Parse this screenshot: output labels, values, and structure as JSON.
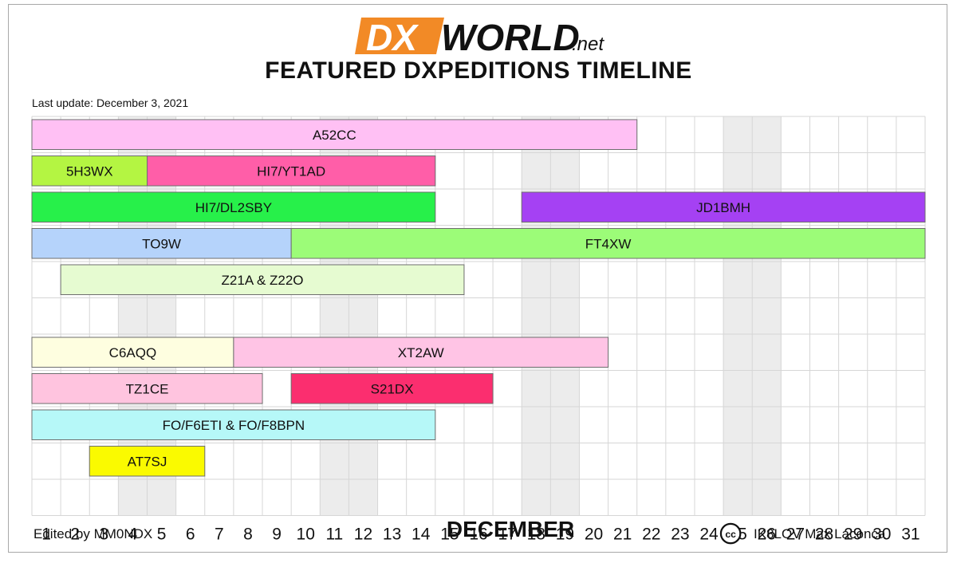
{
  "header": {
    "logo_dx": "DX",
    "logo_world": "WORLD",
    "logo_net": ".net",
    "title": "FEATURED DXPEDITIONS TIMELINE",
    "last_update": "Last update: December 3, 2021"
  },
  "footer": {
    "edited_by": "Edited by MM0NDX",
    "cc_symbol": "cc",
    "credit": "IK8LOV Max Laconca"
  },
  "chart_data": {
    "type": "gantt",
    "title": "FEATURED DXPEDITIONS TIMELINE",
    "xlabel": "DECEMBER",
    "days": [
      1,
      2,
      3,
      4,
      5,
      6,
      7,
      8,
      9,
      10,
      11,
      12,
      13,
      14,
      15,
      16,
      17,
      18,
      19,
      20,
      21,
      22,
      23,
      24,
      25,
      26,
      27,
      28,
      29,
      30,
      31
    ],
    "weekend_days": [
      4,
      5,
      11,
      12,
      18,
      19,
      25,
      26
    ],
    "rows": 11,
    "bars": [
      {
        "label": "A52CC",
        "row": 0,
        "start_day": 1,
        "end_day": 21,
        "color": "#ffc0f4"
      },
      {
        "label": "5H3WX",
        "row": 1,
        "start_day": 1,
        "end_day": 4,
        "color": "#b4f542"
      },
      {
        "label": "HI7/YT1AD",
        "row": 1,
        "start_day": 5,
        "end_day": 14,
        "color": "#ff5ea8"
      },
      {
        "label": "HI7/DL2SBY",
        "row": 2,
        "start_day": 1,
        "end_day": 14,
        "color": "#27f04a"
      },
      {
        "label": "JD1BMH",
        "row": 2,
        "start_day": 18,
        "end_day": 31,
        "color": "#a541f3"
      },
      {
        "label": "TO9W",
        "row": 3,
        "start_day": 1,
        "end_day": 9,
        "color": "#b5d3fb"
      },
      {
        "label": "FT4XW",
        "row": 3,
        "start_day": 10,
        "end_day": 31,
        "color": "#9cfc78"
      },
      {
        "label": "Z21A & Z22O",
        "row": 4,
        "start_day": 2,
        "end_day": 15,
        "color": "#e6fbd1"
      },
      {
        "label": "C6AQQ",
        "row": 6,
        "start_day": 1,
        "end_day": 7,
        "color": "#fefee0"
      },
      {
        "label": "XT2AW",
        "row": 6,
        "start_day": 8,
        "end_day": 20,
        "color": "#ffc4e5"
      },
      {
        "label": "TZ1CE",
        "row": 7,
        "start_day": 1,
        "end_day": 8,
        "color": "#ffc4df"
      },
      {
        "label": "S21DX",
        "row": 7,
        "start_day": 10,
        "end_day": 16,
        "color": "#fb2e6f"
      },
      {
        "label": "FO/F6ETI & FO/F8BPN",
        "row": 8,
        "start_day": 1,
        "end_day": 14,
        "color": "#b6f8f8"
      },
      {
        "label": "AT7SJ",
        "row": 9,
        "start_day": 3,
        "end_day": 6,
        "color": "#fafa00"
      }
    ]
  }
}
